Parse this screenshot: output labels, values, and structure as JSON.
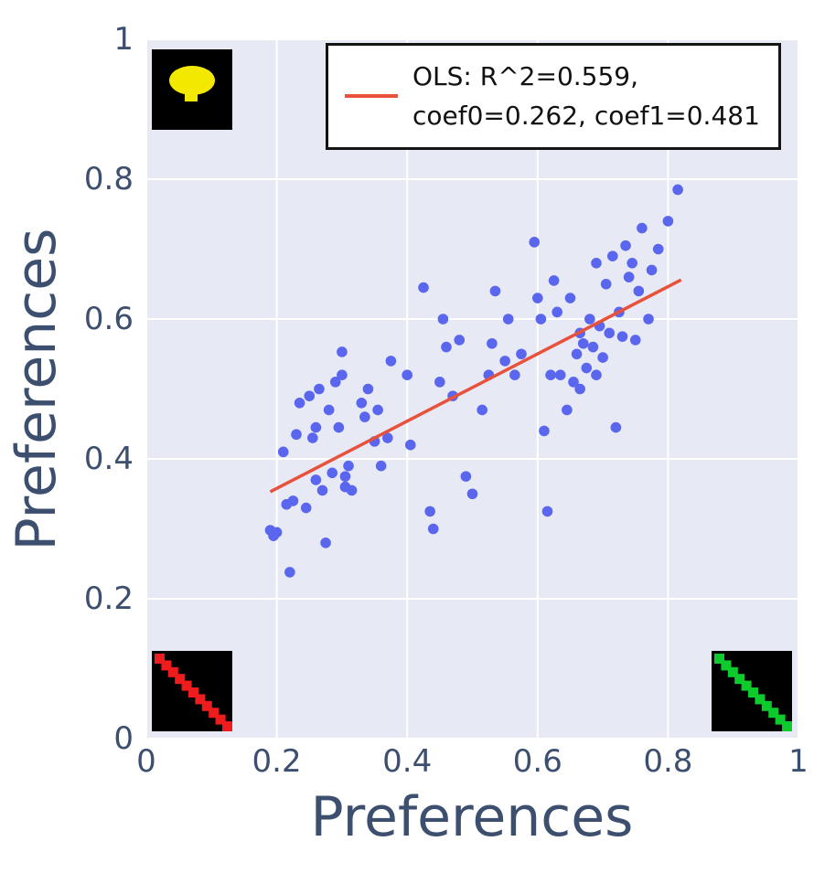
{
  "chart_data": {
    "type": "scatter",
    "title": "",
    "xlabel": "Preferences",
    "ylabel": "Preferences",
    "xlim": [
      0,
      1
    ],
    "ylim": [
      0,
      1
    ],
    "grid": true,
    "xticks": [
      {
        "v": 0,
        "label": "0"
      },
      {
        "v": 0.2,
        "label": "0.2"
      },
      {
        "v": 0.4,
        "label": "0.4"
      },
      {
        "v": 0.6,
        "label": "0.6"
      },
      {
        "v": 0.8,
        "label": "0.8"
      },
      {
        "v": 1,
        "label": "1"
      }
    ],
    "yticks": [
      {
        "v": 0,
        "label": "0"
      },
      {
        "v": 0.2,
        "label": "0.2"
      },
      {
        "v": 0.4,
        "label": "0.4"
      },
      {
        "v": 0.6,
        "label": "0.6"
      },
      {
        "v": 0.8,
        "label": "0.8"
      },
      {
        "v": 1,
        "label": "1"
      }
    ],
    "legend": {
      "position": "top-right",
      "lines": [
        "OLS: R^2=0.559,",
        "coef0=0.262, coef1=0.481"
      ],
      "marker": "line"
    },
    "regression": {
      "r2": 0.559,
      "coef0": 0.262,
      "coef1": 0.481,
      "x0": 0.19,
      "y0": 0.353,
      "x1": 0.82,
      "y1": 0.656
    },
    "colors": {
      "dot": "#5b66ee",
      "line": "#e8513b",
      "plot_bg": "#e7eaf4",
      "grid": "#ffffff",
      "label": "#3d4f6e",
      "legend_border": "#141414"
    },
    "points": [
      [
        0.19,
        0.298
      ],
      [
        0.195,
        0.29
      ],
      [
        0.2,
        0.295
      ],
      [
        0.21,
        0.41
      ],
      [
        0.215,
        0.335
      ],
      [
        0.22,
        0.238
      ],
      [
        0.225,
        0.34
      ],
      [
        0.23,
        0.435
      ],
      [
        0.235,
        0.48
      ],
      [
        0.245,
        0.33
      ],
      [
        0.25,
        0.49
      ],
      [
        0.255,
        0.43
      ],
      [
        0.26,
        0.37
      ],
      [
        0.26,
        0.445
      ],
      [
        0.265,
        0.5
      ],
      [
        0.27,
        0.355
      ],
      [
        0.275,
        0.28
      ],
      [
        0.28,
        0.47
      ],
      [
        0.285,
        0.38
      ],
      [
        0.29,
        0.51
      ],
      [
        0.295,
        0.445
      ],
      [
        0.3,
        0.553
      ],
      [
        0.3,
        0.52
      ],
      [
        0.305,
        0.375
      ],
      [
        0.305,
        0.36
      ],
      [
        0.31,
        0.39
      ],
      [
        0.315,
        0.355
      ],
      [
        0.33,
        0.48
      ],
      [
        0.335,
        0.46
      ],
      [
        0.34,
        0.5
      ],
      [
        0.35,
        0.425
      ],
      [
        0.355,
        0.47
      ],
      [
        0.36,
        0.39
      ],
      [
        0.37,
        0.43
      ],
      [
        0.375,
        0.54
      ],
      [
        0.4,
        0.52
      ],
      [
        0.405,
        0.42
      ],
      [
        0.425,
        0.645
      ],
      [
        0.435,
        0.325
      ],
      [
        0.44,
        0.3
      ],
      [
        0.45,
        0.51
      ],
      [
        0.455,
        0.6
      ],
      [
        0.46,
        0.56
      ],
      [
        0.47,
        0.49
      ],
      [
        0.48,
        0.57
      ],
      [
        0.49,
        0.375
      ],
      [
        0.5,
        0.35
      ],
      [
        0.515,
        0.47
      ],
      [
        0.525,
        0.52
      ],
      [
        0.53,
        0.565
      ],
      [
        0.535,
        0.64
      ],
      [
        0.55,
        0.54
      ],
      [
        0.555,
        0.6
      ],
      [
        0.565,
        0.52
      ],
      [
        0.575,
        0.55
      ],
      [
        0.595,
        0.71
      ],
      [
        0.6,
        0.63
      ],
      [
        0.605,
        0.6
      ],
      [
        0.61,
        0.44
      ],
      [
        0.615,
        0.325
      ],
      [
        0.62,
        0.52
      ],
      [
        0.625,
        0.655
      ],
      [
        0.63,
        0.61
      ],
      [
        0.635,
        0.52
      ],
      [
        0.645,
        0.47
      ],
      [
        0.65,
        0.63
      ],
      [
        0.655,
        0.51
      ],
      [
        0.66,
        0.55
      ],
      [
        0.665,
        0.58
      ],
      [
        0.665,
        0.5
      ],
      [
        0.67,
        0.565
      ],
      [
        0.675,
        0.53
      ],
      [
        0.68,
        0.6
      ],
      [
        0.685,
        0.56
      ],
      [
        0.69,
        0.68
      ],
      [
        0.69,
        0.52
      ],
      [
        0.695,
        0.59
      ],
      [
        0.7,
        0.545
      ],
      [
        0.705,
        0.65
      ],
      [
        0.71,
        0.58
      ],
      [
        0.715,
        0.69
      ],
      [
        0.72,
        0.445
      ],
      [
        0.725,
        0.61
      ],
      [
        0.73,
        0.575
      ],
      [
        0.735,
        0.705
      ],
      [
        0.74,
        0.66
      ],
      [
        0.745,
        0.68
      ],
      [
        0.75,
        0.57
      ],
      [
        0.755,
        0.64
      ],
      [
        0.76,
        0.73
      ],
      [
        0.77,
        0.6
      ],
      [
        0.775,
        0.67
      ],
      [
        0.785,
        0.7
      ],
      [
        0.8,
        0.74
      ],
      [
        0.815,
        0.785
      ]
    ],
    "insets": [
      {
        "name": "inset-top-left",
        "corner": "top-left",
        "bg": "#000000",
        "glyph": "yellow-blob",
        "glyph_color": "#f2e800"
      },
      {
        "name": "inset-bottom-left",
        "corner": "bottom-left",
        "bg": "#000000",
        "glyph": "red-diagonal",
        "glyph_color": "#ee1c1c"
      },
      {
        "name": "inset-bottom-right",
        "corner": "bottom-right",
        "bg": "#000000",
        "glyph": "green-diagonal",
        "glyph_color": "#0ecb2d"
      }
    ]
  }
}
